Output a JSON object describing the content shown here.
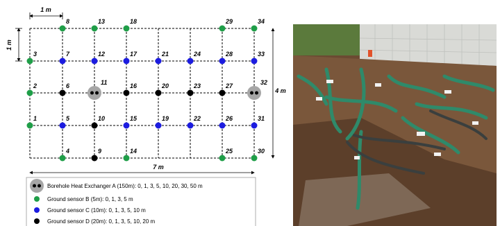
{
  "diagram": {
    "dimensions": {
      "top": "1 m",
      "left": "1 m",
      "right": "4 m",
      "bottom": "7 m"
    },
    "nodes": [
      {
        "label": "1"
      },
      {
        "label": "2"
      },
      {
        "label": "3"
      },
      {
        "label": "4"
      },
      {
        "label": "5"
      },
      {
        "label": "6"
      },
      {
        "label": "7"
      },
      {
        "label": "8"
      },
      {
        "label": "9"
      },
      {
        "label": "10"
      },
      {
        "label": "11"
      },
      {
        "label": "12"
      },
      {
        "label": "13"
      },
      {
        "label": "14"
      },
      {
        "label": "15"
      },
      {
        "label": "16"
      },
      {
        "label": "17"
      },
      {
        "label": "18"
      },
      {
        "label": "19"
      },
      {
        "label": "20"
      },
      {
        "label": "21"
      },
      {
        "label": "22"
      },
      {
        "label": "23"
      },
      {
        "label": "24"
      },
      {
        "label": "25"
      },
      {
        "label": "26"
      },
      {
        "label": "27"
      },
      {
        "label": "28"
      },
      {
        "label": "29"
      },
      {
        "label": "30"
      },
      {
        "label": "31"
      },
      {
        "label": "32"
      },
      {
        "label": "33"
      },
      {
        "label": "34"
      }
    ],
    "legend": [
      "Borehole Heat Exchanger A (150m): 0, 1, 3, 5, 10, 20, 30, 50 m",
      "Ground sensor B (5m): 0, 1, 3, 5 m",
      "Ground sensor C (10m): 0, 1, 3, 5, 10 m",
      "Ground sensor D (20m): 0, 1, 3, 5, 10, 20 m"
    ]
  }
}
